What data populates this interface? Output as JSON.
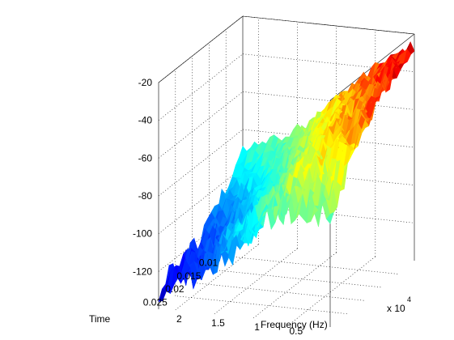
{
  "chart_data": {
    "type": "surface",
    "title": "",
    "xlabel": "Frequency (Hz)",
    "ylabel": "Time",
    "zlabel": "",
    "x_multiplier_label": "x 10",
    "x_multiplier_exponent": "4",
    "x_ticks": [
      "0.5",
      "1",
      "1.5",
      "2"
    ],
    "x_tick_values": [
      5000,
      10000,
      15000,
      20000
    ],
    "y_ticks": [
      "0.01",
      "0.015",
      "0.02",
      "0.025"
    ],
    "y_tick_values": [
      0.01,
      0.015,
      0.02,
      0.025
    ],
    "z_ticks": [
      "-20",
      "-40",
      "-60",
      "-80",
      "-100",
      "-120"
    ],
    "z_tick_values": [
      -20,
      -40,
      -60,
      -80,
      -100,
      -120
    ],
    "xlim": [
      0,
      22000
    ],
    "ylim": [
      0.005,
      0.03
    ],
    "zlim": [
      -140,
      -20
    ],
    "colormap": "jet",
    "grid": true,
    "frequency": [
      0,
      2000,
      4000,
      6000,
      8000,
      10000,
      12000,
      14000,
      16000,
      18000,
      20000,
      22000
    ],
    "time": [
      0.005,
      0.01,
      0.015,
      0.02,
      0.025,
      0.03
    ],
    "level_db": [
      [
        -26,
        -30,
        -36,
        -44,
        -52,
        -58,
        -66,
        -74,
        -80,
        -84,
        -88,
        -90
      ],
      [
        -32,
        -38,
        -46,
        -52,
        -58,
        -66,
        -74,
        -82,
        -90,
        -96,
        -100,
        -104
      ],
      [
        -40,
        -46,
        -52,
        -58,
        -66,
        -74,
        -84,
        -92,
        -100,
        -106,
        -112,
        -116
      ],
      [
        -50,
        -54,
        -58,
        -64,
        -72,
        -80,
        -90,
        -98,
        -106,
        -114,
        -118,
        -122
      ],
      [
        -66,
        -64,
        -66,
        -70,
        -78,
        -86,
        -94,
        -102,
        -110,
        -118,
        -122,
        -126
      ],
      [
        -84,
        -80,
        -78,
        -82,
        -88,
        -96,
        -104,
        -110,
        -116,
        -122,
        -126,
        -128
      ]
    ]
  }
}
